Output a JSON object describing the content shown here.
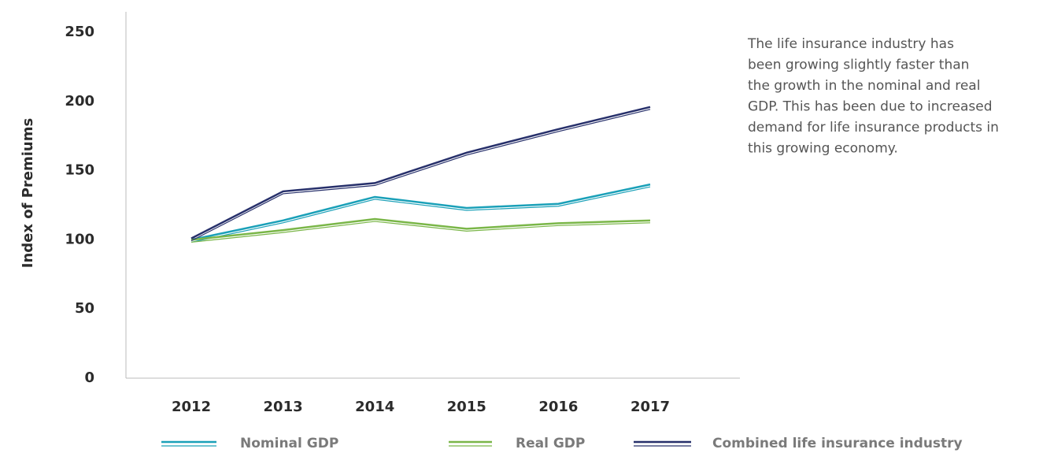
{
  "chart_data": {
    "type": "line",
    "y_label": "Index of Premiums",
    "categories": [
      "2012",
      "2013",
      "2014",
      "2015",
      "2016",
      "2017"
    ],
    "series": [
      {
        "name": "Nominal GDP",
        "color": "#1aa0b8",
        "values": [
          100,
          114,
          131,
          123,
          126,
          140
        ]
      },
      {
        "name": "Real GDP",
        "color": "#7ab648",
        "values": [
          100,
          107,
          115,
          108,
          112,
          114
        ]
      },
      {
        "name": "Combined life insurance industry",
        "color": "#27306b",
        "values": [
          101,
          135,
          141,
          163,
          180,
          196
        ]
      }
    ],
    "ylim": [
      0,
      250
    ],
    "yticks": [
      0,
      50,
      100,
      150,
      200,
      250
    ],
    "grid": false,
    "legend": "bottom",
    "annotation": [
      "The life insurance industry has",
      "been growing slightly faster than",
      "the growth in the nominal and real",
      "GDP. This has been due to increased",
      "demand for life insurance products in",
      "this growing economy."
    ]
  }
}
